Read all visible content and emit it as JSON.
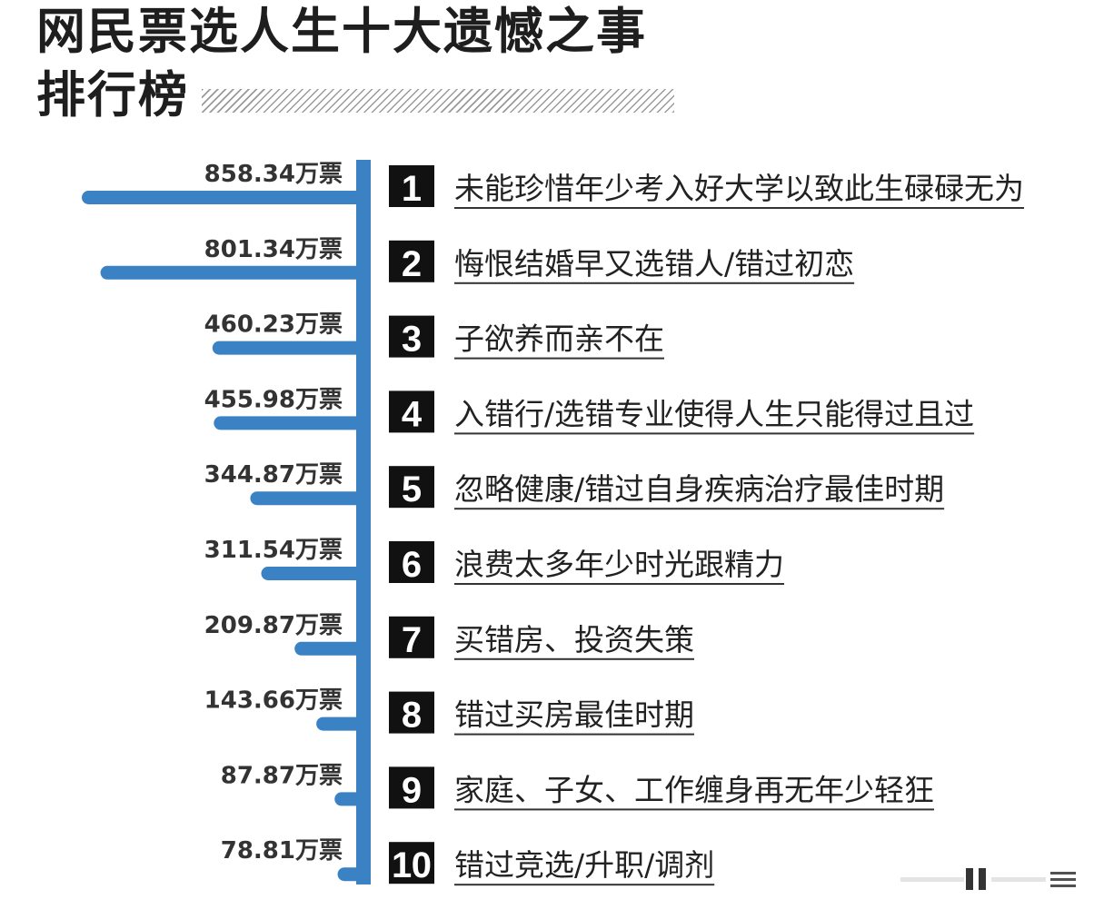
{
  "title": {
    "line1": "网民票选人生十大遗憾之事",
    "line2": "排行榜"
  },
  "chart_data": {
    "type": "bar",
    "orientation": "horizontal",
    "title": "网民票选人生十大遗憾之事排行榜",
    "unit": "万票",
    "categories": [
      "未能珍惜年少考入好大学以致此生碌碌无为",
      "悔恨结婚早又选错人/错过初恋",
      "子欲养而亲不在",
      "入错行/选错专业使得人生只能得过且过",
      "忽略健康/错过自身疾病治疗最佳时期",
      "浪费太多年少时光跟精力",
      "买错房、投资失策",
      "错过买房最佳时期",
      "家庭、子女、工作缠身再无年少轻狂",
      "错过竞选/升职/调剂"
    ],
    "ranks": [
      "1",
      "2",
      "3",
      "4",
      "5",
      "6",
      "7",
      "8",
      "9",
      "10"
    ],
    "values": [
      858.34,
      801.34,
      460.23,
      455.98,
      344.87,
      311.54,
      209.87,
      143.66,
      87.87,
      78.81
    ],
    "value_labels": [
      "858.34万票",
      "801.34万票",
      "460.23万票",
      "455.98万票",
      "344.87万票",
      "311.54万票",
      "209.87万票",
      "143.66万票",
      "87.87万票",
      "78.81万票"
    ],
    "bar_color": "#3a82c4",
    "rank_box_color": "#111111",
    "grid": false,
    "legend": "none"
  }
}
